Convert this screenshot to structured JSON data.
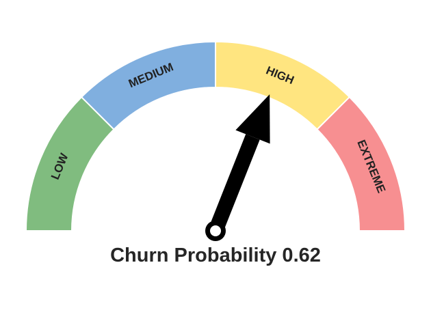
{
  "chart_data": {
    "type": "gauge",
    "title": "Churn Probability 0.62",
    "value": 0.62,
    "range": [
      0,
      1
    ],
    "segments": [
      {
        "label": "LOW",
        "from": 0.0,
        "to": 0.25,
        "color": "#80BC7F"
      },
      {
        "label": "MEDIUM",
        "from": 0.25,
        "to": 0.5,
        "color": "#80AFDF"
      },
      {
        "label": "HIGH",
        "from": 0.5,
        "to": 0.75,
        "color": "#FFE580"
      },
      {
        "label": "EXTREME",
        "from": 0.75,
        "to": 1.0,
        "color": "#F78F91"
      }
    ],
    "needle_color": "#000000"
  }
}
